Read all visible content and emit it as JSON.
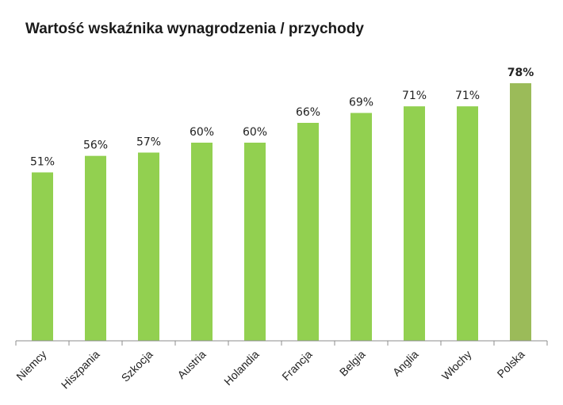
{
  "chart_data": {
    "type": "bar",
    "title": "Wartość wskaźnika wynagrodzenia / przychody",
    "categories": [
      "Niemcy",
      "Hiszpania",
      "Szkocja",
      "Austria",
      "Holandia",
      "Francja",
      "Belgia",
      "Anglia",
      "Włochy",
      "Polska"
    ],
    "values": [
      51,
      56,
      57,
      60,
      60,
      66,
      69,
      71,
      71,
      78
    ],
    "value_labels": [
      "51%",
      "56%",
      "57%",
      "60%",
      "60%",
      "66%",
      "69%",
      "71%",
      "71%",
      "78%"
    ],
    "highlight_index": 9,
    "ylim": [
      0,
      78
    ],
    "xlabel": "",
    "ylabel": "",
    "colors": {
      "bar": "#92d050",
      "highlight": "#9bbb59",
      "axis": "#8c8c8c"
    }
  }
}
